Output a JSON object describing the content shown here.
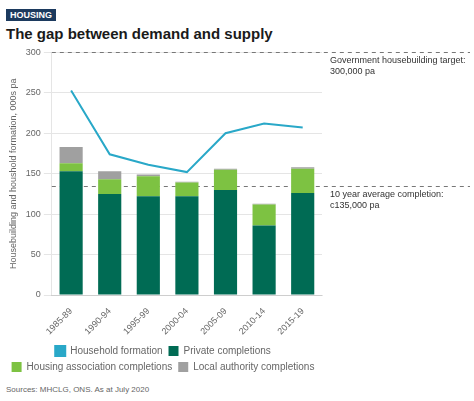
{
  "chart_data": {
    "type": "bar",
    "title": "The gap between demand and supply",
    "subtitle": "HOUSING",
    "y_label": "Housebuilding and houshold formation, 000s pa",
    "source": "Sources: MHCLG, ONS. As at July 2020",
    "categories": [
      "1985-89",
      "1990-94",
      "1995-99",
      "2000-04",
      "2005-09",
      "2010-14",
      "2015-19"
    ],
    "series": [
      {
        "name": "Household formation",
        "type": "line",
        "color": "#29A8C8",
        "values": [
          253,
          174,
          161,
          152,
          200,
          212,
          207
        ]
      },
      {
        "name": "Private completions",
        "type": "bar",
        "color": "#006B54",
        "values": [
          153,
          125,
          122,
          122,
          130,
          86,
          126
        ]
      },
      {
        "name": "Housing association completions",
        "type": "bar",
        "color": "#7DC242",
        "values": [
          10,
          18,
          25,
          17,
          25,
          26,
          30
        ]
      },
      {
        "name": "Local authority completions",
        "type": "bar",
        "color": "#A0A0A0",
        "values": [
          20,
          10,
          2,
          1,
          1,
          1,
          2
        ]
      }
    ],
    "stacked": true,
    "ylim": [
      0,
      300
    ],
    "yticks": [
      0,
      50,
      100,
      150,
      200,
      250,
      300
    ],
    "grid": true,
    "legend": "bottom",
    "reference_lines": [
      {
        "value": 300,
        "label": "Government housebuilding target:\n300,000 pa"
      },
      {
        "value": 135,
        "label": "10 year average completion:\nc135,000 pa"
      }
    ]
  }
}
